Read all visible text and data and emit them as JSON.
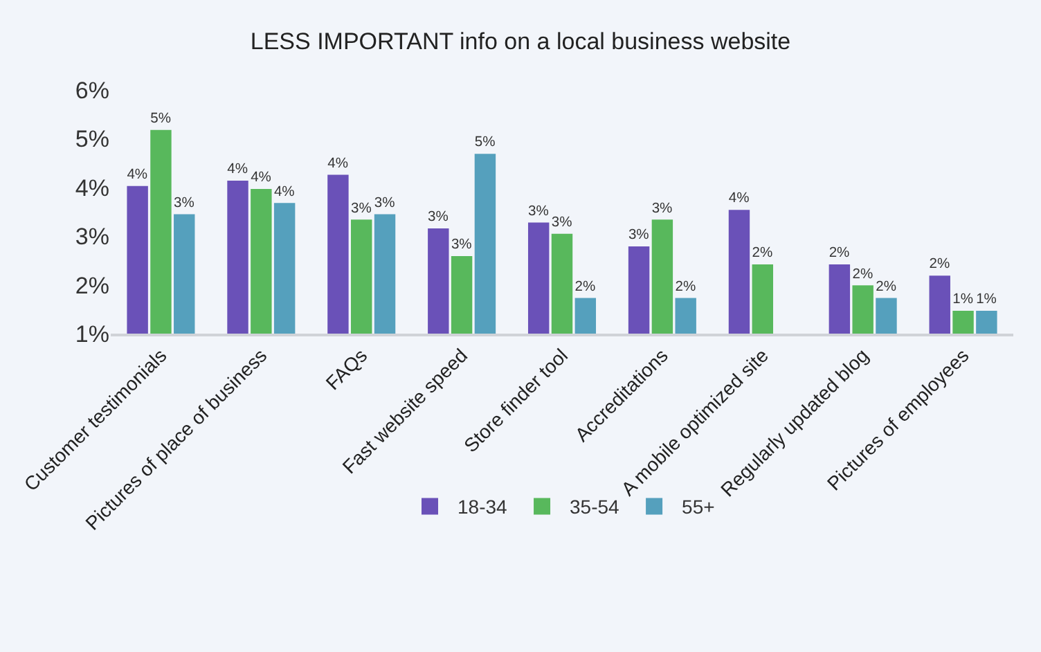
{
  "chart_data": {
    "type": "bar",
    "title": "LESS IMPORTANT info on a local business website",
    "categories": [
      "Customer testimonials",
      "Pictures of place of business",
      "FAQs",
      "Fast website speed",
      "Store finder tool",
      "Accreditations",
      "A mobile optimized site",
      "Regularly updated blog",
      "Pictures of employees"
    ],
    "series": [
      {
        "name": "18-34",
        "color": "#6a51b8",
        "values": [
          4.03,
          4.14,
          4.26,
          3.16,
          3.28,
          2.79,
          3.54,
          2.42,
          2.19
        ],
        "value_labels": [
          "4%",
          "4%",
          "4%",
          "3%",
          "3%",
          "3%",
          "4%",
          "2%",
          "2%"
        ]
      },
      {
        "name": "35-54",
        "color": "#58b85c",
        "values": [
          5.18,
          3.97,
          3.34,
          2.59,
          3.05,
          3.34,
          2.42,
          1.99,
          1.47
        ],
        "value_labels": [
          "5%",
          "4%",
          "3%",
          "3%",
          "3%",
          "3%",
          "2%",
          "2%",
          "1%"
        ]
      },
      {
        "name": "55+",
        "color": "#55a0bd",
        "values": [
          3.45,
          3.68,
          3.45,
          4.69,
          1.73,
          1.73,
          null,
          1.73,
          1.47
        ],
        "value_labels": [
          "3%",
          "4%",
          "3%",
          "5%",
          "2%",
          "2%",
          null,
          "2%",
          "1%"
        ]
      }
    ],
    "ylim": [
      1,
      6
    ],
    "yticks": [
      {
        "value": 1,
        "label": "1%"
      },
      {
        "value": 2,
        "label": "2%"
      },
      {
        "value": 3,
        "label": "3%"
      },
      {
        "value": 4,
        "label": "4%"
      },
      {
        "value": 5,
        "label": "5%"
      },
      {
        "value": 6,
        "label": "6%"
      }
    ],
    "grid": false,
    "legend": "bottom"
  }
}
